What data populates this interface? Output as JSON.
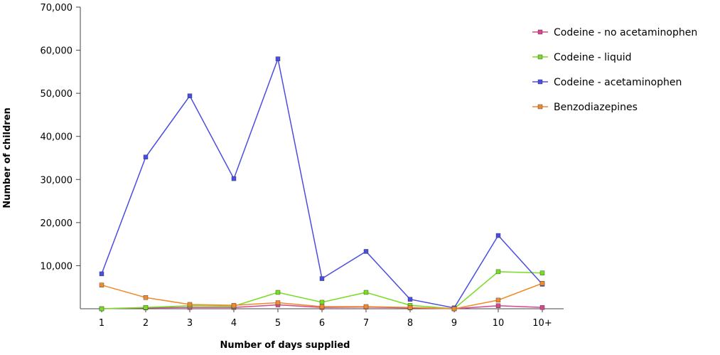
{
  "chart_data": {
    "type": "line",
    "title": "",
    "xlabel": "Number of days supplied",
    "ylabel": "Number of children",
    "categories": [
      "1",
      "2",
      "3",
      "4",
      "5",
      "6",
      "7",
      "8",
      "9",
      "10",
      "10+"
    ],
    "ylim": [
      0,
      70000
    ],
    "yticks": [
      {
        "value": 10000,
        "label": "10,000"
      },
      {
        "value": 20000,
        "label": "20,000"
      },
      {
        "value": 30000,
        "label": "30,000"
      },
      {
        "value": 40000,
        "label": "40,000"
      },
      {
        "value": 50000,
        "label": "50,000"
      },
      {
        "value": 60000,
        "label": "60,000"
      },
      {
        "value": 70000,
        "label": "70,000"
      }
    ],
    "grid": false,
    "legend_position": "top-right",
    "series": [
      {
        "name": "Codeine - no acetaminophen",
        "color": "#d4478a",
        "values": [
          0,
          200,
          300,
          300,
          900,
          300,
          400,
          200,
          0,
          700,
          300
        ]
      },
      {
        "name": "Codeine - liquid",
        "color": "#77dd22",
        "values": [
          0,
          300,
          700,
          600,
          3800,
          1500,
          3800,
          800,
          0,
          8600,
          8300
        ]
      },
      {
        "name": "Codeine - acetaminophen",
        "color": "#4a4ee0",
        "values": [
          8100,
          35200,
          49400,
          30200,
          58000,
          7000,
          13300,
          2200,
          200,
          17000,
          5700
        ]
      },
      {
        "name": "Benzodiazepines",
        "color": "#f08a2e",
        "values": [
          5500,
          2600,
          1000,
          800,
          1400,
          500,
          500,
          300,
          0,
          2000,
          5900
        ]
      }
    ]
  }
}
